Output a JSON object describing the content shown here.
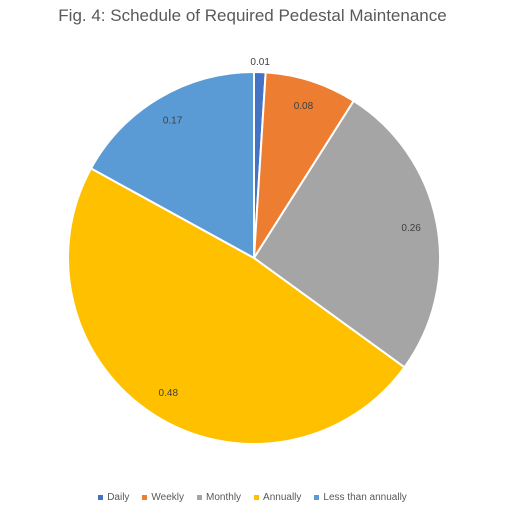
{
  "chart_data": {
    "type": "pie",
    "title": "Fig. 4: Schedule of Required Pedestal Maintenance",
    "categories": [
      "Daily",
      "Weekly",
      "Monthly",
      "Annually",
      "Less than annually"
    ],
    "values": [
      0.01,
      0.08,
      0.26,
      0.48,
      0.17
    ],
    "data_labels": [
      "0.01",
      "0.08",
      "0.26",
      "0.48",
      "0.17"
    ],
    "colors": [
      "#4472C4",
      "#ED7D31",
      "#A5A5A5",
      "#FFC000",
      "#5B9BD5"
    ],
    "legend_position": "bottom",
    "start_angle": "top, clockwise"
  }
}
